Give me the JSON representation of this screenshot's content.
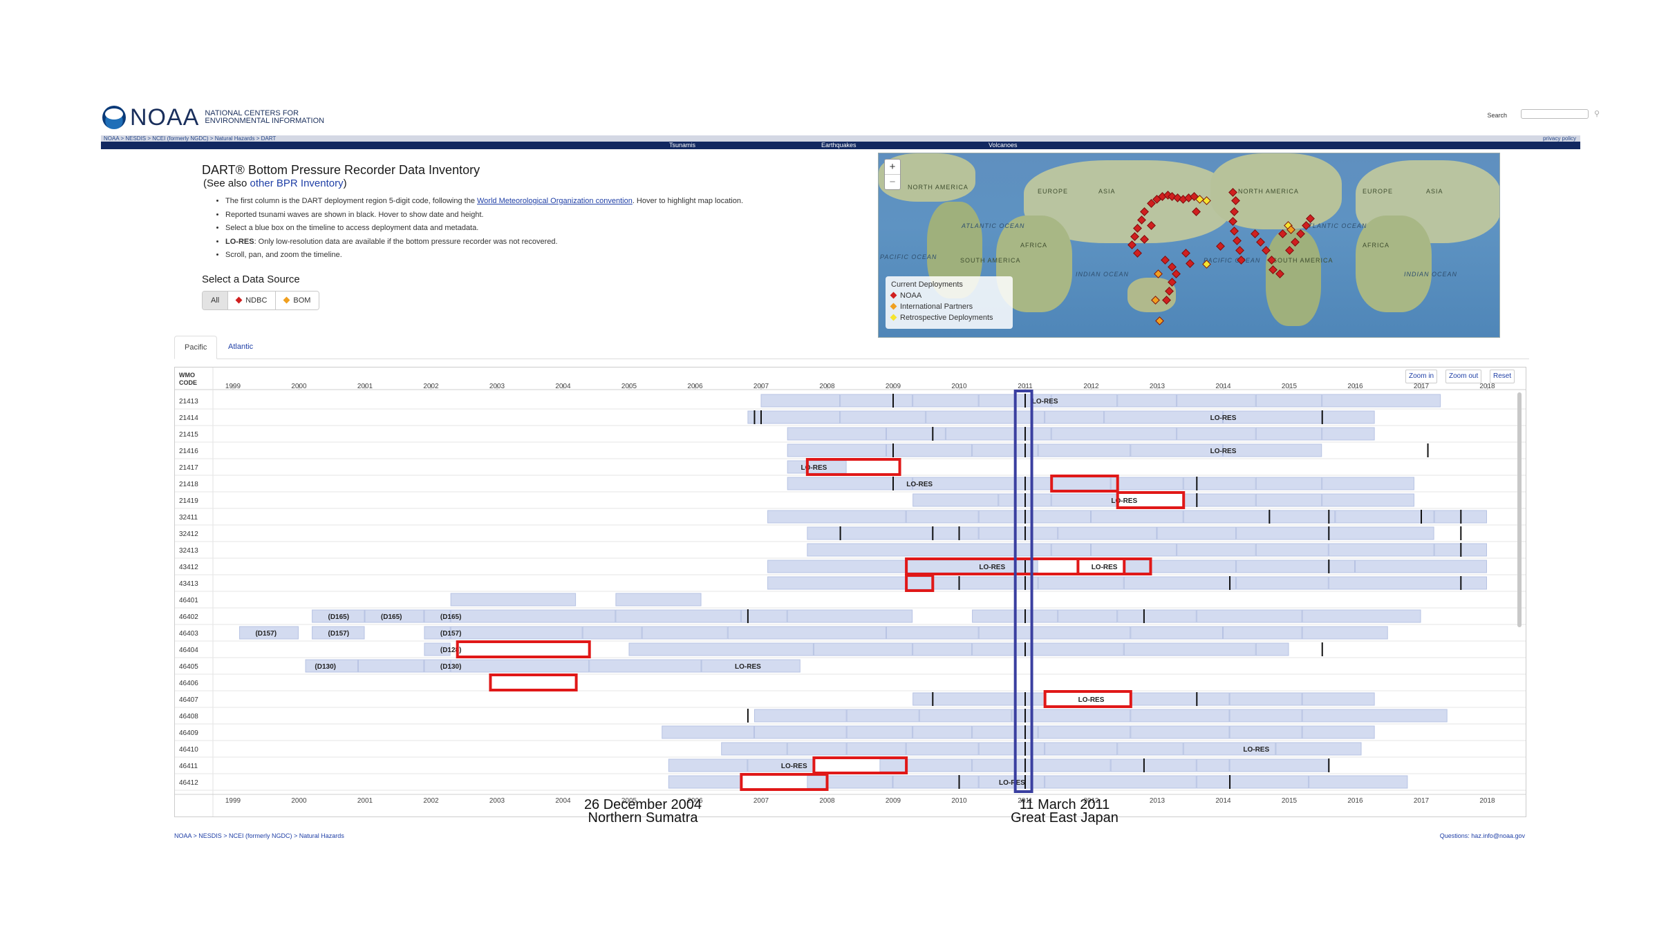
{
  "header": {
    "logo_text": "NOAA",
    "logo_sub_line1": "NATIONAL CENTERS FOR",
    "logo_sub_line2": "ENVIRONMENTAL INFORMATION",
    "search_label": "Search",
    "breadcrumb_top": "NOAA > NESDIS > NCEI (formerly NGDC) > Natural Hazards > DART",
    "privacy_label": "privacy policy",
    "nav": [
      "Tsunamis",
      "Earthquakes",
      "Volcanoes"
    ]
  },
  "content": {
    "title": "DART® Bottom Pressure Recorder Data Inventory",
    "see_also_prefix": "(See also ",
    "see_also_link": "other BPR Inventory",
    "see_also_suffix": ")",
    "bullet1_pre": "The first column is the DART deployment region 5-digit code, following the ",
    "bullet1_link": "World Meteorological Organization convention",
    "bullet1_post": ". Hover to highlight map location.",
    "bullet2": "Reported tsunami waves are shown in black. Hover to show date and height.",
    "bullet3": "Select a blue box on the timeline to access deployment data and metadata.",
    "bullet4_bold": "LO-RES",
    "bullet4_rest": ": Only low-resolution data are available if the bottom pressure recorder was not recovered.",
    "bullet5": "Scroll, pan, and zoom the timeline.",
    "datasource_title": "Select a Data Source",
    "datasource_buttons": [
      "All",
      "NDBC",
      "BOM"
    ]
  },
  "colors": {
    "ndbc": "#d01f1f",
    "bom": "#f0a020",
    "retro": "#f5e430",
    "deployment_box": "#d3dbf0",
    "highlight_red": "#e01818",
    "highlight_blue": "#3a3fa0"
  },
  "map": {
    "zoom_in": "+",
    "zoom_out": "−",
    "labels": {
      "north_america_l": "NORTH AMERICA",
      "europe_l": "EUROPE",
      "asia_l": "ASIA",
      "atlantic_l": "ATLANTIC OCEAN",
      "africa_l": "AFRICA",
      "pacific_l": "PACIFIC OCEAN",
      "south_america_l": "SOUTH AMERICA",
      "indian_l": "INDIAN OCEAN",
      "north_america_r": "NORTH AMERICA",
      "pacific_r": "PACIFIC OCEAN",
      "south_america_r": "SOUTH AMERICA",
      "atlantic_r": "ATLANTIC OCEAN",
      "europe_r": "EUROPE",
      "asia_r": "ASIA",
      "africa_r": "AFRICA",
      "indian_r": "INDIAN OCEAN"
    },
    "legend_title": "Current Deployments",
    "legend_items": [
      "NOAA",
      "International Partners",
      "Retrospective Deployments"
    ]
  },
  "tabs": [
    "Pacific",
    "Atlantic"
  ],
  "timeline": {
    "wmo_header_1": "WMO",
    "wmo_header_2": "CODE",
    "zoom_in": "Zoom in",
    "zoom_out": "Zoom out",
    "reset": "Reset",
    "years": [
      "1999",
      "2000",
      "2001",
      "2002",
      "2003",
      "2004",
      "2005",
      "2006",
      "2007",
      "2008",
      "2009",
      "2010",
      "2011",
      "2012",
      "2013",
      "2014",
      "2015",
      "2016",
      "2017",
      "2018"
    ],
    "rows": [
      "21413",
      "21414",
      "21415",
      "21416",
      "21417",
      "21418",
      "21419",
      "32411",
      "32412",
      "32413",
      "43412",
      "43413",
      "46401",
      "46402",
      "46403",
      "46404",
      "46405",
      "46406",
      "46407",
      "46408",
      "46409",
      "46410",
      "46411",
      "46412"
    ],
    "bar_labels": [
      "LO-RES",
      "LO-RES",
      "LO-RES",
      "LO-RES",
      "LO-RES",
      "LO-RES",
      "LO-RES",
      "LO-RES",
      "(D165)",
      "(D165)",
      "(D165)",
      "(D157)",
      "(D157)",
      "(D157)",
      "(D128)",
      "(D130)",
      "(D130)",
      "LO-RES",
      "LO-RES",
      "LO-RES",
      "LO-RES",
      "LO-RES"
    ]
  },
  "annotations": {
    "event1_date": "26 December 2004",
    "event1_place": "Northern Sumatra",
    "event2_date": "11 March 2011",
    "event2_place": "Great East Japan"
  },
  "footer": {
    "breadcrumb": "NOAA > NESDIS > NCEI (formerly NGDC) > Natural Hazards",
    "questions": "Questions: haz.info@noaa.gov"
  }
}
